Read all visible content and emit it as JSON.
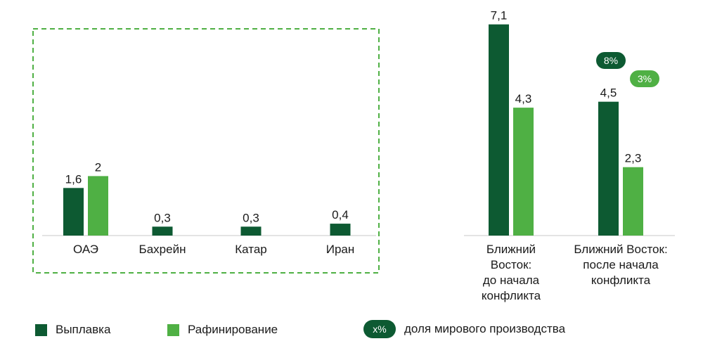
{
  "chart_data": {
    "type": "bar",
    "categories": [
      "ОАЭ",
      "Бахрейн",
      "Катар",
      "Иран",
      "Ближний Восток: до начала конфликта",
      "Ближний Восток: после начала конфликта"
    ],
    "category_lines": [
      [
        "ОАЭ"
      ],
      [
        "Бахрейн"
      ],
      [
        "Катар"
      ],
      [
        "Иран"
      ],
      [
        "Ближний",
        "Восток:",
        "до начала",
        "конфликта"
      ],
      [
        "Ближний Восток:",
        "после начала",
        "конфликта"
      ]
    ],
    "series": [
      {
        "name": "Выплавка",
        "color": "#0d5a32",
        "values": [
          1.6,
          0.3,
          0.3,
          0.4,
          7.1,
          4.5
        ],
        "labels": [
          "1,6",
          "0,3",
          "0,3",
          "0,4",
          "7,1",
          "4,5"
        ]
      },
      {
        "name": "Рафинирование",
        "color": "#4fb044",
        "values": [
          2,
          null,
          null,
          null,
          4.3,
          2.3
        ],
        "labels": [
          "2",
          "",
          "",
          "",
          "4,3",
          "2,3"
        ]
      }
    ],
    "share_badges": [
      {
        "category_index": 5,
        "series": "Выплавка",
        "label": "8%",
        "color": "#0d5a32"
      },
      {
        "category_index": 5,
        "series": "Рафинирование",
        "label": "3%",
        "color": "#4fb044"
      }
    ],
    "highlight_group": {
      "category_indices": [
        0,
        1,
        2,
        3
      ],
      "style": "dashed",
      "color": "#4fb044"
    },
    "ylim": [
      0,
      7.1
    ],
    "grid": false
  },
  "legend": {
    "items": [
      {
        "label": "Выплавка",
        "color": "#0d5a32"
      },
      {
        "label": "Рафинирование",
        "color": "#4fb044"
      }
    ],
    "badge": {
      "text": "x%",
      "label": "доля мирового производства",
      "color": "#0d5a32"
    }
  }
}
